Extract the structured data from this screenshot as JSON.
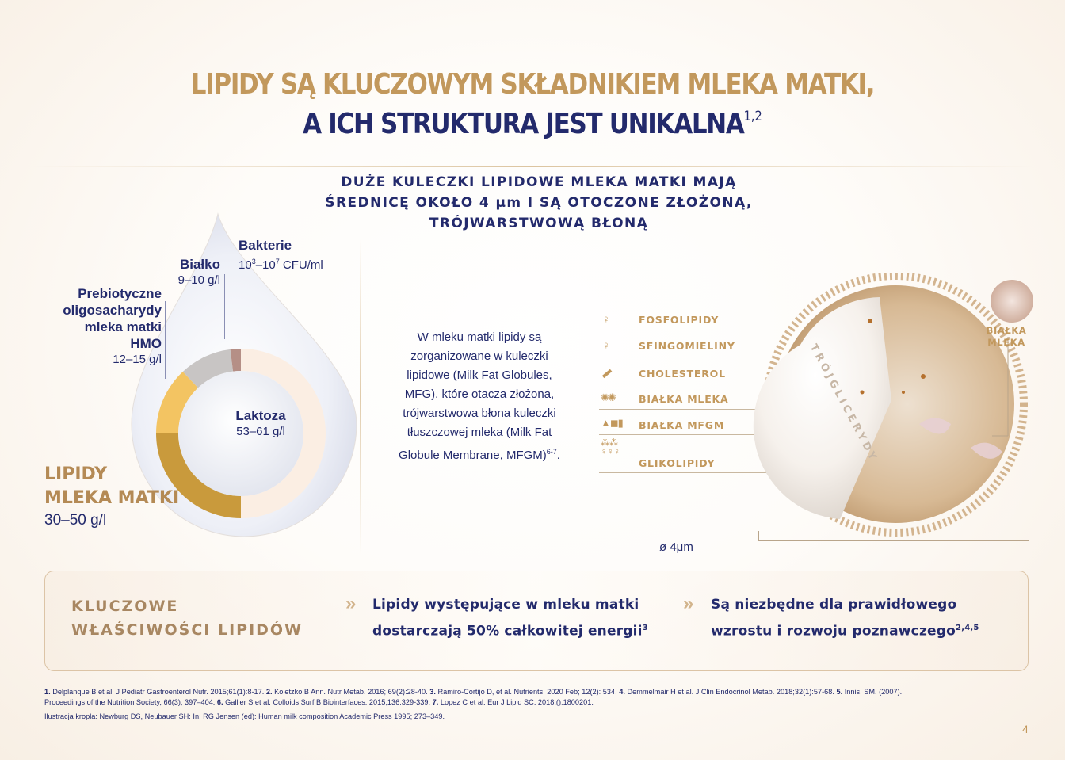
{
  "title": {
    "line1": "LIPIDY SĄ KLUCZOWYM SKŁADNIKIEM MLEKA MATKI,",
    "line2": "A ICH STRUKTURA JEST UNIKALNA",
    "line2_sup": "1,2"
  },
  "subheading": {
    "line1": "DUŻE KULECZKI LIPIDOWE MLEKA MATKI MAJĄ",
    "line2": "ŚREDNICĘ OKOŁO 4 μm I SĄ OTOCZONE ZŁOŻONĄ,",
    "line3": "TRÓJWARSTWOWĄ BŁONĄ"
  },
  "drop": {
    "bakterie": {
      "title": "Bakterie",
      "value_pre": "10",
      "exp1": "3",
      "dash": "–10",
      "exp2": "7",
      "unit": " CFU/ml"
    },
    "bialko": {
      "title": "Białko",
      "value": "9–10 g/l"
    },
    "hmo": {
      "line1": "Prebiotyczne",
      "line2": "oligosacharydy",
      "line3": "mleka matki",
      "line4": "HMO",
      "value": "12–15 g/l"
    },
    "laktoza": {
      "title": "Laktoza",
      "value": "53–61 g/l"
    },
    "lipidy": {
      "line1": "LIPIDY",
      "line2": "MLEKA MATKI",
      "value": "30–50 g/l"
    }
  },
  "donut": {
    "segments": [
      {
        "name": "Laktoza",
        "fraction": 0.5,
        "color": "#fbeee3"
      },
      {
        "name": "Lipidy",
        "fraction": 0.25,
        "color": "#c99a3c"
      },
      {
        "name": "HMO",
        "fraction": 0.13,
        "color": "#f3c462"
      },
      {
        "name": "Białko",
        "fraction": 0.1,
        "color": "#c8c5c4"
      },
      {
        "name": "Bakterie",
        "fraction": 0.02,
        "color": "#b58f86"
      }
    ]
  },
  "description": {
    "lines": [
      "W mleku matki lipidy są",
      "zorganizowane w kuleczki",
      "lipidowe (Milk Fat Globules,",
      "MFG), które otacza złożona,",
      "trójwarstwowa błona kuleczki",
      "tłuszczowej mleka (Milk Fat",
      "Globule Membrane, MFGM)"
    ],
    "sup": "6-7",
    "tail": "."
  },
  "legend": {
    "items": [
      {
        "label": "FOSFOLIPIDY",
        "icon": "phospholipid-icon"
      },
      {
        "label": "SFINGOMIELINY",
        "icon": "sphingomyelin-icon"
      },
      {
        "label": "CHOLESTEROL",
        "icon": "cholesterol-icon"
      },
      {
        "label": "BIAŁKA MLEKA",
        "icon": "milk-protein-icon"
      },
      {
        "label": "BIAŁKA MFGM",
        "icon": "mfgm-protein-icon"
      },
      {
        "label": "GLIKOLIPIDY",
        "icon": "glycolipid-icon"
      }
    ],
    "bialka_mleka_right": {
      "line1": "BIAŁKA",
      "line2": "MLEKA"
    },
    "trojglicerydy": "TRÓJGLICERYDY",
    "diameter": "ø 4μm"
  },
  "key_box": {
    "title_line1": "KLUCZOWE",
    "title_line2": "WŁAŚCIWOŚCI LIPIDÓW",
    "chevron": "»",
    "point1": {
      "line1": "Lipidy występujące w mleku matki",
      "line2": "dostarczają 50% całkowitej energii",
      "sup": "3"
    },
    "point2": {
      "line1": "Są niezbędne dla prawidłowego",
      "line2": "wzrostu i rozwoju poznawczego",
      "sup": "2,4,5"
    }
  },
  "references": {
    "r1n": "1.",
    "r1": " Delplanque B et al. J Pediatr Gastroenterol Nutr. 2015;61(1):8-17. ",
    "r2n": "2.",
    "r2": " Koletzko B Ann. Nutr Metab. 2016; 69(2):28-40. ",
    "r3n": "3.",
    "r3": " Ramiro-Cortijo D, et al. Nutrients. 2020 Feb; 12(2): 534. ",
    "r4n": "4.",
    "r4": " Demmelmair H et al. J Clin Endocrinol Metab. 2018;32(1):57-68. ",
    "r5n": "5.",
    "r5": " Innis, SM. (2007).",
    "r5b": "Proceedings of the Nutrition Society, 66(3), 397–404. ",
    "r6n": "6.",
    "r6": " Gallier S et al. Colloids Surf B Biointerfaces. 2015;136:329-339. ",
    "r7n": "7.",
    "r7": " Lopez C et al. Eur J Lipid SC. 2018;():1800201.",
    "illustration": "Ilustracja kropla: Newburg DS, Neubauer SH: In: RG Jensen (ed): Human milk composition Academic Press 1995; 273–349."
  },
  "page_number": "4"
}
